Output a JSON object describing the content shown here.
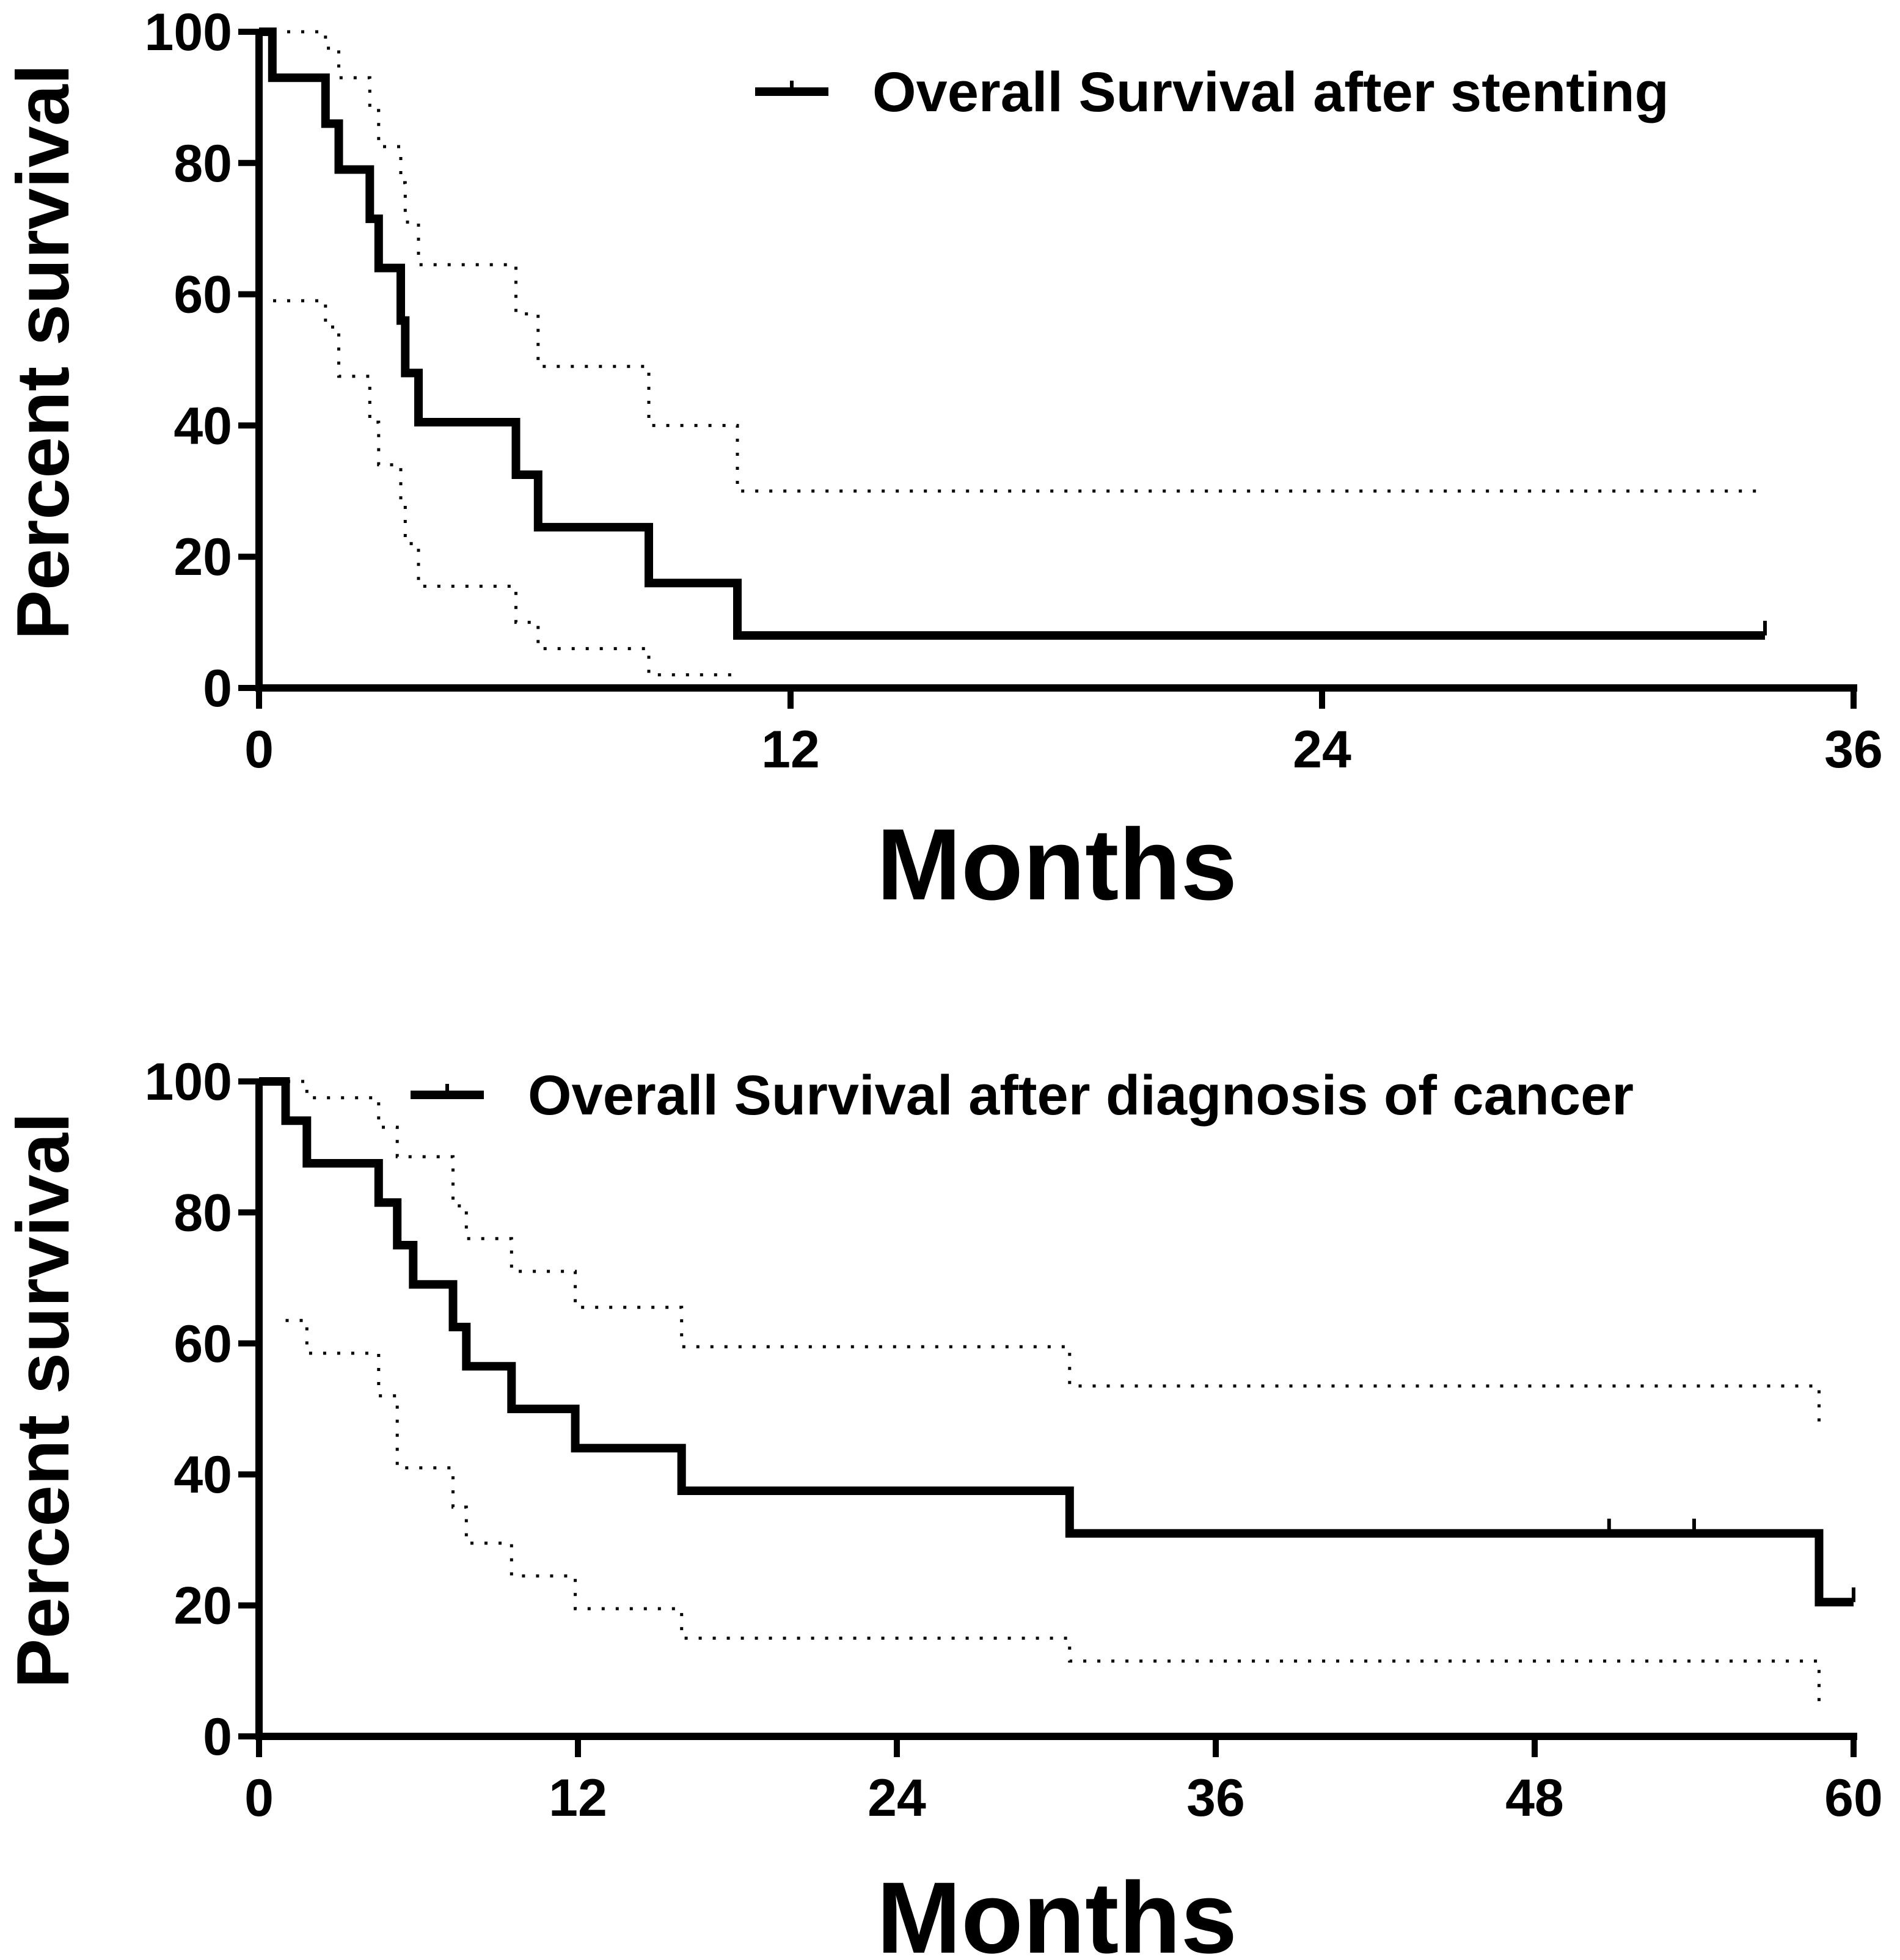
{
  "chart_data": [
    {
      "type": "line",
      "subtype": "kaplan-meier",
      "title": "",
      "xlabel": "Months",
      "ylabel": "Percent survival",
      "xlim": [
        0,
        36
      ],
      "ylim": [
        0,
        100
      ],
      "xticks": [
        "0",
        "12",
        "24",
        "36"
      ],
      "yticks": [
        "0",
        "20",
        "40",
        "60",
        "80",
        "100"
      ],
      "legend": {
        "position": "top-right",
        "entries": [
          "Overall Survival after stenting"
        ]
      },
      "series": [
        {
          "name": "Overall Survival after stenting",
          "style": "solid",
          "x": [
            0,
            0.3,
            0.3,
            1.5,
            1.5,
            1.8,
            1.8,
            2.5,
            2.5,
            2.7,
            2.7,
            3.2,
            3.2,
            3.3,
            3.3,
            3.6,
            3.6,
            3.8,
            3.8,
            3.9,
            3.9,
            5.8,
            5.8,
            6.3,
            6.3,
            8.8,
            8.8,
            10.8,
            10.8,
            34
          ],
          "y": [
            100,
            100,
            93,
            93,
            86,
            86,
            79,
            79,
            71.5,
            71.5,
            64,
            64,
            56,
            56,
            48,
            48,
            40.5,
            40.5,
            40.5,
            40.5,
            40.5,
            40.5,
            32.5,
            32.5,
            24.5,
            24.5,
            16,
            16,
            8,
            8
          ],
          "censored": [
            [
              34,
              8
            ]
          ]
        },
        {
          "name": "Upper 95% CI",
          "style": "dotted",
          "x": [
            0,
            1.5,
            1.5,
            1.8,
            1.8,
            2.5,
            2.5,
            2.7,
            2.7,
            3.2,
            3.2,
            3.3,
            3.3,
            3.6,
            3.6,
            3.8,
            3.8,
            5.8,
            5.8,
            6.3,
            6.3,
            8.8,
            8.8,
            10.8,
            10.8,
            34
          ],
          "y": [
            100,
            100,
            97.5,
            97.5,
            93,
            93,
            88,
            88,
            82.5,
            82.5,
            77,
            77,
            71,
            71,
            64.5,
            64.5,
            64.5,
            64.5,
            57,
            57,
            49,
            49,
            40,
            40,
            30,
            30
          ]
        },
        {
          "name": "Lower 95% CI",
          "style": "dotted",
          "x": [
            0,
            1.5,
            1.5,
            1.8,
            1.8,
            2.5,
            2.5,
            2.7,
            2.7,
            3.2,
            3.2,
            3.3,
            3.3,
            3.6,
            3.6,
            3.8,
            3.8,
            5.8,
            5.8,
            6.3,
            6.3,
            8.8,
            8.8,
            10.8
          ],
          "y": [
            59,
            59,
            55,
            55,
            47.5,
            47.5,
            40.5,
            40.5,
            34,
            34,
            28,
            28,
            22,
            22,
            15.5,
            15.5,
            15.5,
            15.5,
            10,
            10,
            6,
            6,
            2,
            2
          ]
        }
      ]
    },
    {
      "type": "line",
      "subtype": "kaplan-meier",
      "title": "",
      "xlabel": "Months",
      "ylabel": "Percent survival",
      "xlim": [
        0,
        60
      ],
      "ylim": [
        0,
        100
      ],
      "xticks": [
        "0",
        "12",
        "24",
        "36",
        "48",
        "60"
      ],
      "yticks": [
        "0",
        "20",
        "40",
        "60",
        "80",
        "100"
      ],
      "legend": {
        "position": "top-right",
        "entries": [
          "Overall Survival after diagnosis of cancer"
        ]
      },
      "series": [
        {
          "name": "Overall Survival after diagnosis of cancer",
          "style": "solid",
          "x": [
            0,
            1,
            1,
            1.8,
            1.8,
            4.5,
            4.5,
            5.2,
            5.2,
            5.8,
            5.8,
            7.3,
            7.3,
            7.8,
            7.8,
            9.5,
            9.5,
            11.9,
            11.9,
            15.9,
            15.9,
            30.5,
            30.5,
            58.7,
            58.7,
            60
          ],
          "y": [
            100,
            100,
            94,
            94,
            87.5,
            87.5,
            81.5,
            81.5,
            75,
            75,
            69,
            69,
            62.5,
            62.5,
            56.5,
            56.5,
            50,
            50,
            44,
            44,
            37.5,
            37.5,
            31,
            31,
            20.5,
            20.5
          ],
          "censored": [
            [
              50.8,
              31
            ],
            [
              54,
              31
            ],
            [
              60,
              20.5
            ]
          ]
        },
        {
          "name": "Upper 95% CI",
          "style": "dotted",
          "x": [
            0,
            1.8,
            1.8,
            4.5,
            4.5,
            5.2,
            5.2,
            7.3,
            7.3,
            7.8,
            7.8,
            9.5,
            9.5,
            11.9,
            11.9,
            15.9,
            15.9,
            30.5,
            30.5,
            58.7,
            58.7
          ],
          "y": [
            100,
            100,
            97.5,
            97.5,
            93,
            93,
            88.5,
            88.5,
            81,
            81,
            76,
            76,
            71,
            71,
            65.5,
            65.5,
            59.5,
            59.5,
            53.5,
            53.5,
            47
          ]
        },
        {
          "name": "Lower 95% CI",
          "style": "dotted",
          "x": [
            1,
            1.8,
            1.8,
            4.5,
            4.5,
            5.2,
            5.2,
            7.3,
            7.3,
            7.8,
            7.8,
            9.5,
            9.5,
            11.9,
            11.9,
            15.9,
            15.9,
            30.5,
            30.5,
            58.7,
            58.7
          ],
          "y": [
            63.5,
            63.5,
            58.5,
            58.5,
            52,
            52,
            41,
            41,
            35,
            35,
            29.5,
            29.5,
            24.5,
            24.5,
            19.5,
            19.5,
            15,
            15,
            11.5,
            11.5,
            5
          ]
        }
      ]
    }
  ]
}
